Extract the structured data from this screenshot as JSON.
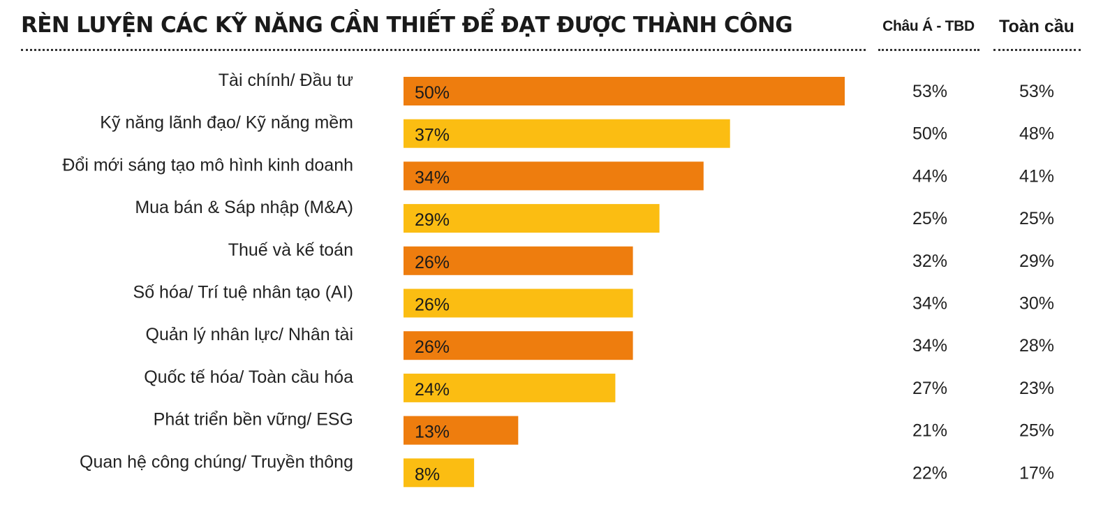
{
  "chart_data": {
    "type": "bar",
    "orientation": "horizontal",
    "title": "RÈN LUYỆN CÁC KỸ NĂNG CẦN THIẾT ĐỂ ĐẠT ĐƯỢC THÀNH CÔNG",
    "categories": [
      "Tài chính/ Đầu tư",
      "Kỹ năng lãnh đạo/ Kỹ năng mềm",
      "Đổi mới sáng tạo mô hình kinh doanh",
      "Mua bán & Sáp nhập (M&A)",
      "Thuế và kế toán",
      "Số hóa/ Trí tuệ nhân tạo (AI)",
      "Quản lý nhân lực/ Nhân tài",
      "Quốc tế hóa/ Toàn cầu hóa",
      "Phát triển bền vững/ ESG",
      "Quan hệ công chúng/ Truyền thông"
    ],
    "values": [
      50,
      37,
      34,
      29,
      26,
      26,
      26,
      24,
      13,
      8
    ],
    "value_labels": [
      "50%",
      "37%",
      "34%",
      "29%",
      "26%",
      "26%",
      "26%",
      "24%",
      "13%",
      "8%"
    ],
    "bar_colors": [
      "#ee7d0e",
      "#fbbd12"
    ],
    "xlim": [
      0,
      50
    ],
    "grid": false,
    "columns": [
      {
        "header": "Châu Á - TBD",
        "values": [
          "53%",
          "50%",
          "44%",
          "25%",
          "32%",
          "34%",
          "34%",
          "27%",
          "21%",
          "22%"
        ]
      },
      {
        "header": "Toàn cầu",
        "values": [
          "53%",
          "48%",
          "41%",
          "25%",
          "29%",
          "30%",
          "28%",
          "23%",
          "25%",
          "17%"
        ]
      }
    ]
  }
}
